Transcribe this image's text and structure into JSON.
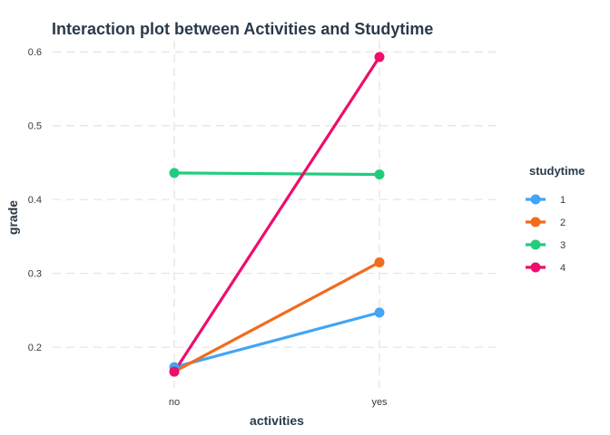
{
  "chart_data": {
    "type": "line",
    "title": "Interaction plot between Activities and Studytime",
    "xlabel": "activities",
    "ylabel": "grade",
    "categories": [
      "no",
      "yes"
    ],
    "ylim": [
      0.145,
      0.615
    ],
    "yticks": [
      0.2,
      0.3,
      0.4,
      0.5,
      0.6
    ],
    "ytick_labels": [
      "0.2",
      "0.3",
      "0.4",
      "0.5",
      "0.6"
    ],
    "grid": true,
    "legend": {
      "title": "studytime",
      "position": "right"
    },
    "series": [
      {
        "name": "1",
        "values": [
          0.173,
          0.247
        ],
        "color": "#42A5F5"
      },
      {
        "name": "2",
        "values": [
          0.167,
          0.315
        ],
        "color": "#F26B1D"
      },
      {
        "name": "3",
        "values": [
          0.436,
          0.434
        ],
        "color": "#22CC7F"
      },
      {
        "name": "4",
        "values": [
          0.167,
          0.593
        ],
        "color": "#EE0E6B"
      }
    ]
  }
}
